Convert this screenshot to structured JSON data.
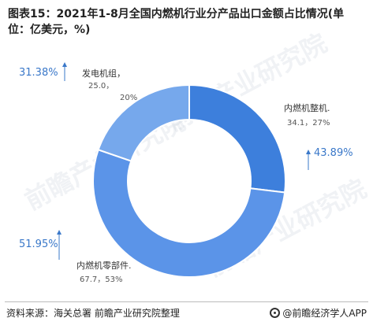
{
  "title": "图表15：2021年1-8月全国内燃机行业分产品出口金额占比情况(单位：亿美元，%)",
  "source": "资料来源：海关总署 前瞻产业研究院整理",
  "brand": "@前瞻经济学人APP",
  "watermark": "前瞻产业研究院",
  "chart_data": {
    "type": "pie",
    "donut": true,
    "labels": [
      "内燃机整机",
      "内燃机零部件",
      "发电机组"
    ],
    "values": [
      34.1,
      67.7,
      25.0
    ],
    "shares": [
      27,
      53,
      20
    ],
    "percent_labels": [
      "43.89%",
      "51.95%",
      "31.38%"
    ],
    "value_labels": [
      "34.1，27%",
      "67.7，53%",
      "25.0，\n20%"
    ],
    "colors": [
      "#3d7fdc",
      "#5b94e8",
      "#76a8ec"
    ]
  }
}
